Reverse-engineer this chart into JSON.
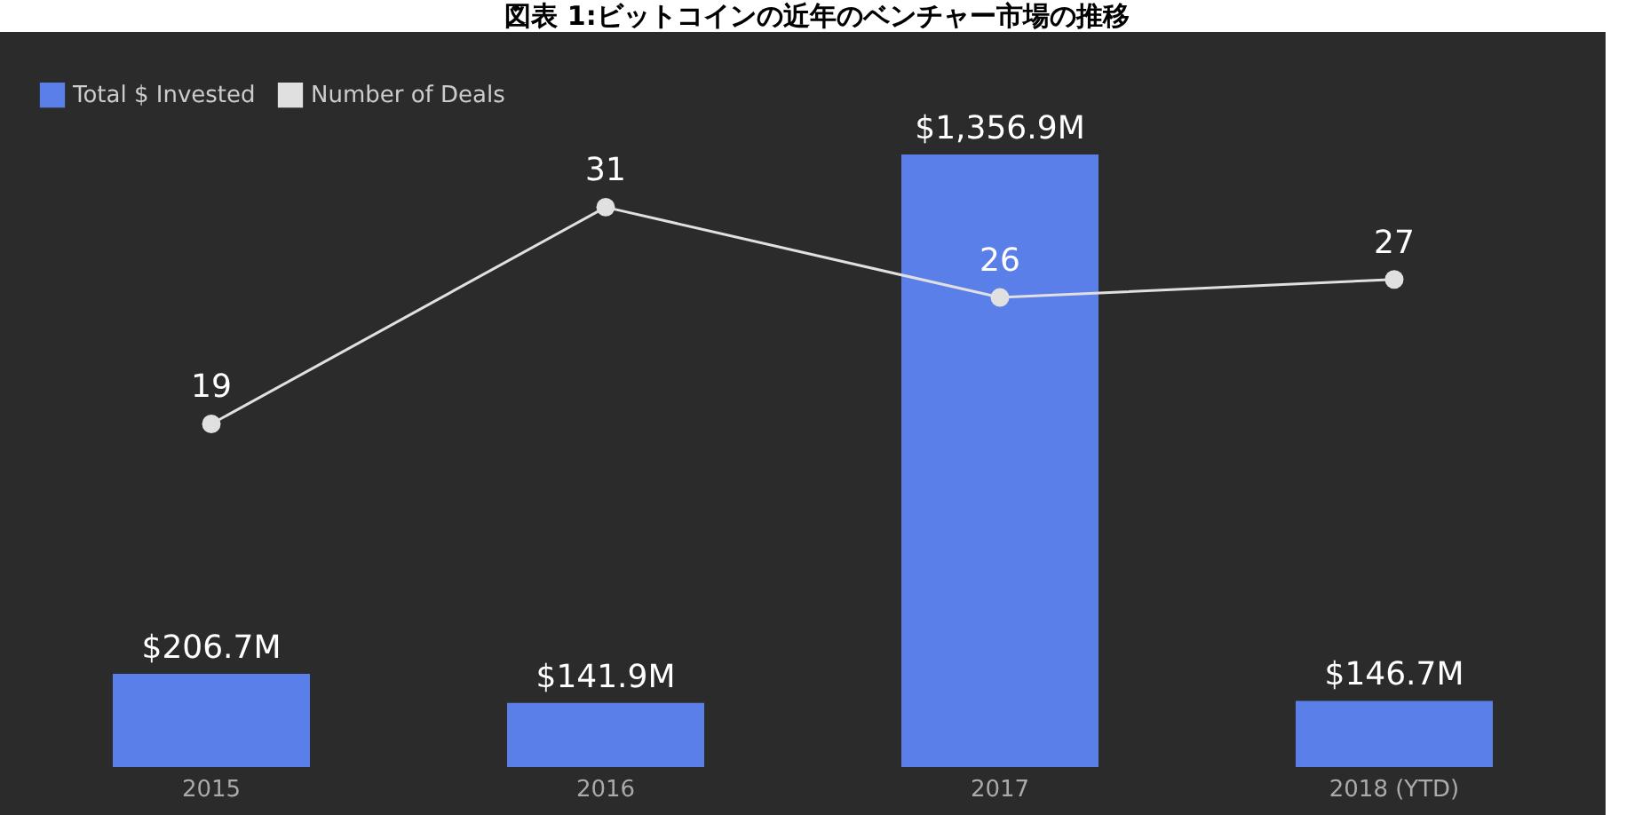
{
  "chart_data": {
    "type": "bar",
    "title": "図表 1:ビットコインの近年のベンチャー市場の推移",
    "categories": [
      "2015",
      "2016",
      "2017",
      "2018 (YTD)"
    ],
    "tick_labels": "x",
    "legend": "top left",
    "series": [
      {
        "name": "Total $ Invested",
        "color": "#5b7fe8",
        "values": [
          206.7,
          141.9,
          1356.9,
          146.7
        ],
        "value_labels": [
          "$206.7M",
          "$141.9M",
          "$1,356.9M",
          "$146.7M"
        ]
      },
      {
        "name": "Number of Deals",
        "type": "line",
        "axis": "y2",
        "color": "#e0e0e0",
        "marker": "circle",
        "values": [
          19,
          31,
          26,
          27
        ],
        "value_labels": [
          "19",
          "31",
          "26",
          "27"
        ]
      }
    ]
  }
}
